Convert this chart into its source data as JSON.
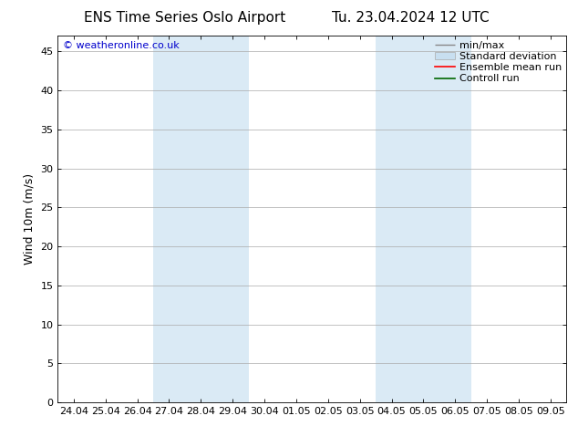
{
  "title_left": "ENS Time Series Oslo Airport",
  "title_right": "Tu. 23.04.2024 12 UTC",
  "ylabel": "Wind 10m (m/s)",
  "watermark": "© weatheronline.co.uk",
  "watermark_color": "#0000cc",
  "bg_color": "#ffffff",
  "plot_bg_color": "#ffffff",
  "shaded_bands": [
    {
      "xstart": 3,
      "xend": 5,
      "color": "#daeaf5"
    },
    {
      "xstart": 10,
      "xend": 12,
      "color": "#daeaf5"
    }
  ],
  "x_tick_labels": [
    "24.04",
    "25.04",
    "26.04",
    "27.04",
    "28.04",
    "29.04",
    "30.04",
    "01.05",
    "02.05",
    "03.05",
    "04.05",
    "05.05",
    "06.05",
    "07.05",
    "08.05",
    "09.05"
  ],
  "x_tick_positions": [
    0,
    1,
    2,
    3,
    4,
    5,
    6,
    7,
    8,
    9,
    10,
    11,
    12,
    13,
    14,
    15
  ],
  "xlim": [
    -0.5,
    15.5
  ],
  "ylim": [
    0,
    47
  ],
  "yticks": [
    0,
    5,
    10,
    15,
    20,
    25,
    30,
    35,
    40,
    45
  ],
  "grid_color": "#aaaaaa",
  "title_fontsize": 11,
  "axis_label_fontsize": 9,
  "tick_fontsize": 8,
  "watermark_fontsize": 8,
  "legend_fontsize": 8
}
